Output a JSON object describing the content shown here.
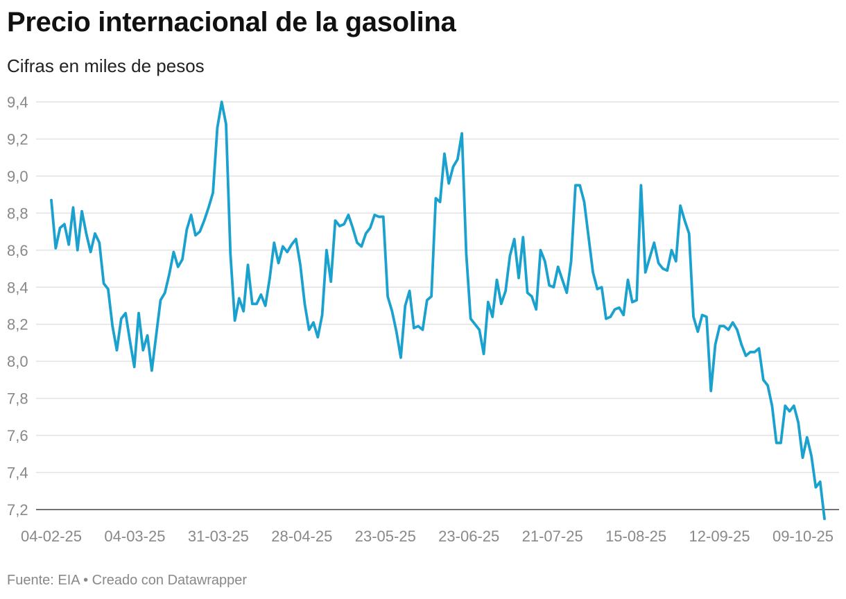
{
  "chart_data": {
    "type": "line",
    "title": "Precio internacional de la gasolina",
    "subtitle": "Cifras en miles de pesos",
    "source": "Fuente: EIA • Creado con Datawrapper",
    "colors": {
      "series": "#1ba1ce"
    },
    "ylim": [
      7.2,
      9.4
    ],
    "yticks": [
      "9,4",
      "9,2",
      "9,0",
      "8,8",
      "8,6",
      "8,4",
      "8,2",
      "8,0",
      "7,8",
      "7,6",
      "7,4",
      "7,2"
    ],
    "yticks_values": [
      9.4,
      9.2,
      9.0,
      8.8,
      8.6,
      8.4,
      8.2,
      8.0,
      7.8,
      7.6,
      7.4,
      7.2
    ],
    "xticks": [
      "04-02-25",
      "04-03-25",
      "31-03-25",
      "28-04-25",
      "23-05-25",
      "23-06-25",
      "21-07-25",
      "15-08-25",
      "12-09-25",
      "09-10-25"
    ],
    "grid": true,
    "series": [
      {
        "values": [
          8.87,
          8.61,
          8.72,
          8.74,
          8.63,
          8.83,
          8.6,
          8.81,
          8.69,
          8.59,
          8.69,
          8.64,
          8.42,
          8.39,
          8.19,
          8.06,
          8.23,
          8.26,
          8.11,
          7.97,
          8.26,
          8.06,
          8.14,
          7.95,
          8.14,
          8.33,
          8.37,
          8.47,
          8.59,
          8.51,
          8.55,
          8.71,
          8.79,
          8.68,
          8.7,
          8.76,
          8.83,
          8.91,
          9.26,
          9.4,
          9.28,
          8.58,
          8.22,
          8.34,
          8.27,
          8.52,
          8.31,
          8.31,
          8.36,
          8.3,
          8.45,
          8.64,
          8.53,
          8.62,
          8.59,
          8.63,
          8.66,
          8.52,
          8.31,
          8.17,
          8.21,
          8.13,
          8.25,
          8.6,
          8.43,
          8.76,
          8.73,
          8.74,
          8.79,
          8.72,
          8.64,
          8.62,
          8.69,
          8.72,
          8.79,
          8.78,
          8.78,
          8.35,
          8.27,
          8.16,
          8.02,
          8.3,
          8.38,
          8.18,
          8.19,
          8.17,
          8.33,
          8.35,
          8.88,
          8.86,
          9.12,
          8.96,
          9.05,
          9.09,
          9.23,
          8.58,
          8.23,
          8.2,
          8.17,
          8.04,
          8.32,
          8.24,
          8.44,
          8.31,
          8.38,
          8.57,
          8.66,
          8.45,
          8.67,
          8.37,
          8.35,
          8.28,
          8.6,
          8.54,
          8.41,
          8.4,
          8.51,
          8.44,
          8.37,
          8.54,
          8.95,
          8.95,
          8.86,
          8.67,
          8.48,
          8.39,
          8.4,
          8.23,
          8.24,
          8.28,
          8.29,
          8.25,
          8.44,
          8.32,
          8.33,
          8.95,
          8.48,
          8.56,
          8.64,
          8.53,
          8.5,
          8.49,
          8.6,
          8.54,
          8.84,
          8.76,
          8.69,
          8.24,
          8.16,
          8.25,
          8.24,
          7.84,
          8.09,
          8.19,
          8.19,
          8.17,
          8.21,
          8.17,
          8.09,
          8.03,
          8.05,
          8.05,
          8.07,
          7.9,
          7.87,
          7.76,
          7.56,
          7.56,
          7.76,
          7.73,
          7.76,
          7.67,
          7.48,
          7.59,
          7.49,
          7.32,
          7.35,
          7.15
        ]
      }
    ]
  }
}
